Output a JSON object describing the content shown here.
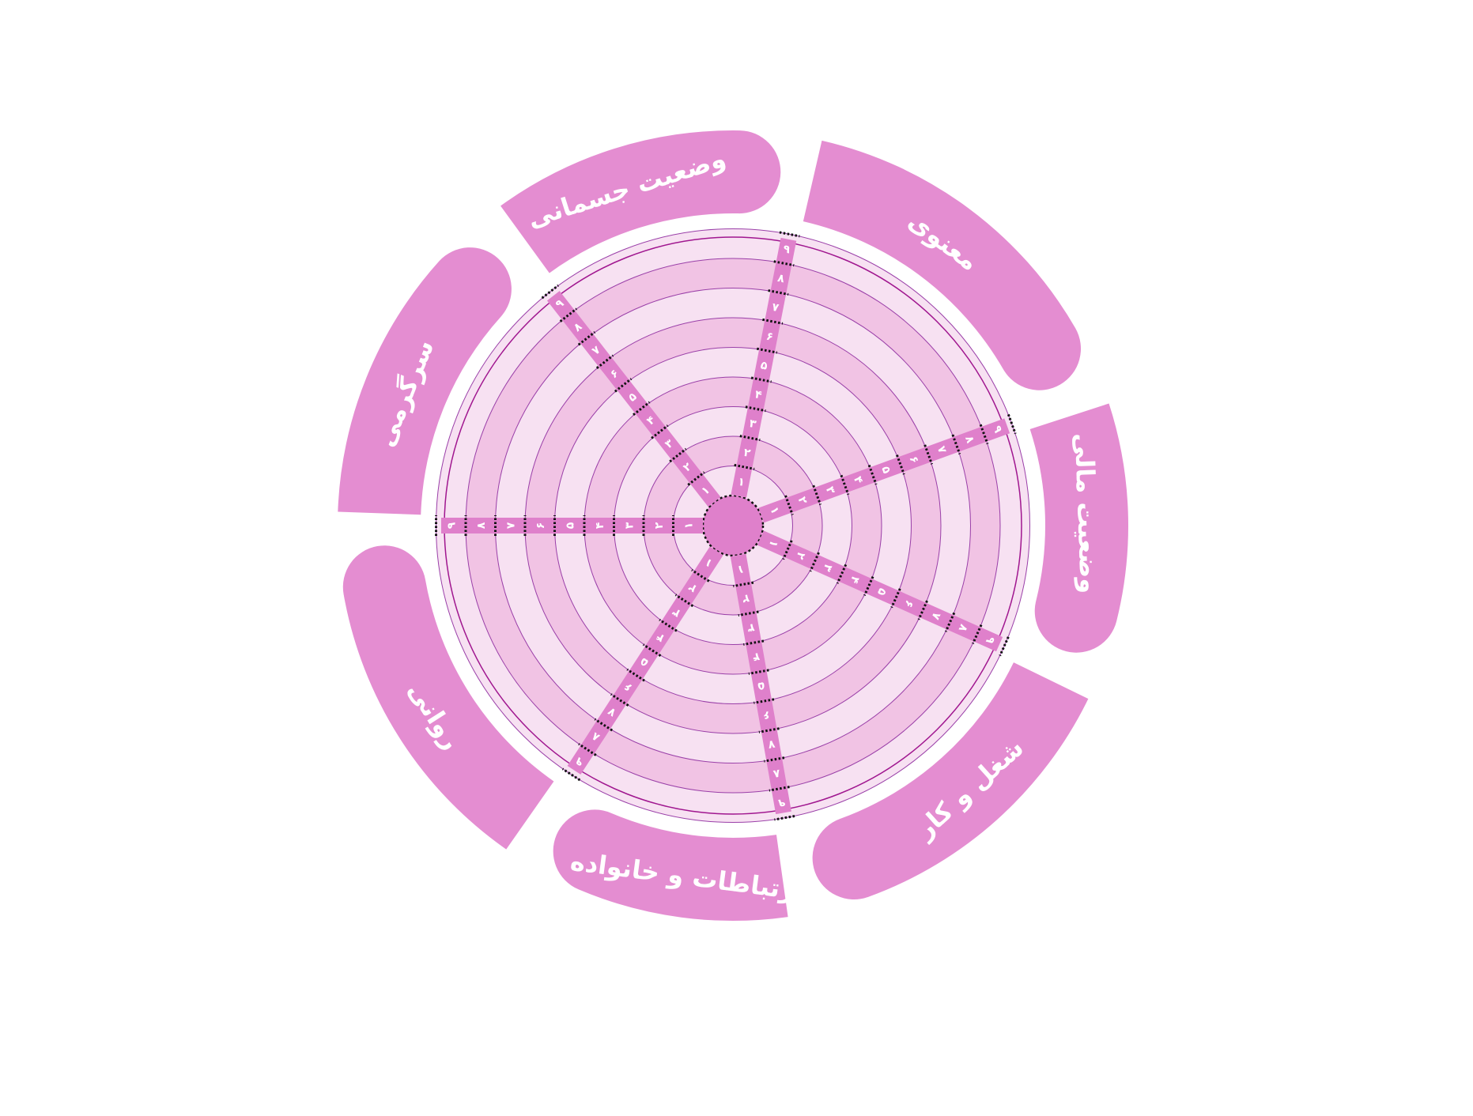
{
  "colors": {
    "label_fill": "#e48dd1",
    "ring_dark": "#f1c3e4",
    "ring_light": "#f7e1f2",
    "ring_line": "#9a3fa8",
    "outer_line": "#a0168f",
    "spoke": "#df80cb",
    "tick": "#111111",
    "label_text": "#ffffff"
  },
  "levels": [
    "۱",
    "۲",
    "۳",
    "۴",
    "۵",
    "۶",
    "۷",
    "۸",
    "۹"
  ],
  "segments": [
    {
      "key": "spiritual",
      "label": "معنوی"
    },
    {
      "key": "financial",
      "label": "وضعیت مالی"
    },
    {
      "key": "career",
      "label": "شغل و کار"
    },
    {
      "key": "family",
      "label": "ارتباطات و خانواده"
    },
    {
      "key": "mental",
      "label": "روانی"
    },
    {
      "key": "leisure",
      "label": "سرگرمی"
    },
    {
      "key": "physical",
      "label": "وضعیت جسمانی"
    }
  ]
}
